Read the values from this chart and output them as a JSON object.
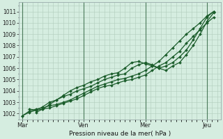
{
  "xlabel": "Pression niveau de la mer( hPa )",
  "bg_color": "#d5ede0",
  "grid_color": "#b0ccbb",
  "line_color": "#1a5c2a",
  "vline_color": "#4a7a5a",
  "ylim": [
    1001.5,
    1011.8
  ],
  "yticks": [
    1002,
    1003,
    1004,
    1005,
    1006,
    1007,
    1008,
    1009,
    1010,
    1011
  ],
  "day_labels": [
    "Mar",
    "Ven",
    "Mer",
    "Jeu"
  ],
  "day_positions": [
    0,
    36,
    72,
    108
  ],
  "xlim": [
    -2,
    116
  ],
  "series": [
    {
      "x": [
        0,
        4,
        8,
        12,
        16,
        20,
        24,
        28,
        32,
        36,
        40,
        44,
        48,
        52,
        56,
        60,
        64,
        68,
        72,
        76,
        80,
        84,
        88,
        92,
        96,
        100,
        104,
        108,
        112
      ],
      "y": [
        1001.8,
        1002.2,
        1002.4,
        1002.5,
        1002.7,
        1002.8,
        1003.0,
        1003.2,
        1003.5,
        1003.8,
        1004.1,
        1004.4,
        1004.6,
        1004.8,
        1005.0,
        1005.1,
        1005.3,
        1005.5,
        1005.8,
        1006.2,
        1006.6,
        1007.2,
        1007.8,
        1008.4,
        1009.0,
        1009.5,
        1010.0,
        1010.6,
        1011.0
      ]
    },
    {
      "x": [
        0,
        4,
        8,
        12,
        16,
        20,
        24,
        28,
        32,
        36,
        40,
        44,
        48,
        52,
        56,
        60,
        64,
        68,
        72,
        76,
        80,
        84,
        88,
        92,
        96,
        100,
        104,
        108,
        112
      ],
      "y": [
        1001.8,
        1002.1,
        1002.3,
        1002.4,
        1002.5,
        1002.7,
        1002.9,
        1003.1,
        1003.3,
        1003.6,
        1003.9,
        1004.2,
        1004.4,
        1004.5,
        1004.7,
        1004.9,
        1005.0,
        1005.2,
        1005.4,
        1005.8,
        1006.2,
        1006.5,
        1007.0,
        1007.5,
        1008.2,
        1008.8,
        1009.4,
        1010.0,
        1010.5
      ]
    },
    {
      "x": [
        4,
        8,
        12,
        16,
        20,
        24,
        28,
        32,
        36,
        40,
        44,
        48,
        52,
        56,
        60,
        64,
        68,
        72,
        76,
        80,
        84,
        88,
        92,
        96,
        100,
        104,
        108,
        112
      ],
      "y": [
        1002.4,
        1002.3,
        1002.6,
        1003.0,
        1003.2,
        1003.5,
        1003.7,
        1004.0,
        1004.2,
        1004.4,
        1004.7,
        1005.0,
        1005.2,
        1005.4,
        1005.5,
        1006.0,
        1006.3,
        1006.5,
        1006.3,
        1006.0,
        1005.8,
        1006.2,
        1006.5,
        1007.2,
        1008.0,
        1009.0,
        1010.1,
        1010.9
      ]
    },
    {
      "x": [
        8,
        12,
        16,
        20,
        24,
        28,
        32,
        36,
        40,
        44,
        48,
        52,
        56,
        60,
        64,
        68,
        72,
        76,
        80,
        84,
        88,
        92,
        96,
        100,
        104,
        108,
        112
      ],
      "y": [
        1002.1,
        1002.4,
        1002.8,
        1003.2,
        1003.6,
        1004.0,
        1004.3,
        1004.5,
        1004.8,
        1005.0,
        1005.3,
        1005.5,
        1005.6,
        1006.0,
        1006.5,
        1006.6,
        1006.4,
        1006.2,
        1006.0,
        1006.2,
        1006.5,
        1007.0,
        1007.6,
        1008.5,
        1009.5,
        1010.5,
        1011.0
      ]
    }
  ]
}
